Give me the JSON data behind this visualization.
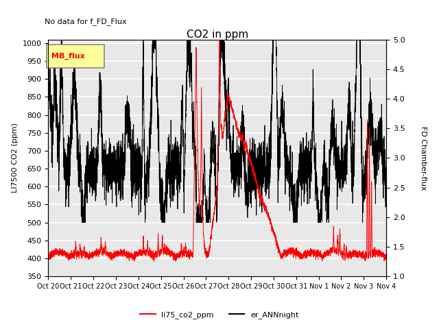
{
  "title": "CO2 in ppm",
  "subtitle": "No data for f_FD_Flux",
  "ylabel_left": "LI7500 CO2 (ppm)",
  "ylabel_right": "FD Chamber-flux",
  "ylim_left": [
    350,
    1010
  ],
  "ylim_right": [
    1.0,
    5.0
  ],
  "yticks_left": [
    350,
    400,
    450,
    500,
    550,
    600,
    650,
    700,
    750,
    800,
    850,
    900,
    950,
    1000
  ],
  "yticks_right": [
    1.0,
    1.5,
    2.0,
    2.5,
    3.0,
    3.5,
    4.0,
    4.5,
    5.0
  ],
  "xtick_labels": [
    "Oct 20",
    "Oct 21",
    "Oct 22",
    "Oct 23",
    "Oct 24",
    "Oct 25",
    "Oct 26",
    "Oct 27",
    "Oct 28",
    "Oct 29",
    "Oct 30",
    "Oct 31",
    "Nov 1",
    "Nov 2",
    "Nov 3",
    "Nov 4"
  ],
  "line1_color": "#ff0000",
  "line2_color": "#000000",
  "line1_label": "li75_co2_ppm",
  "line2_label": "er_ANNnight",
  "legend_box_color": "#ffff99",
  "legend_box_label": "MB_flux",
  "background_color": "#e8e8e8",
  "grid_color": "#ffffff"
}
